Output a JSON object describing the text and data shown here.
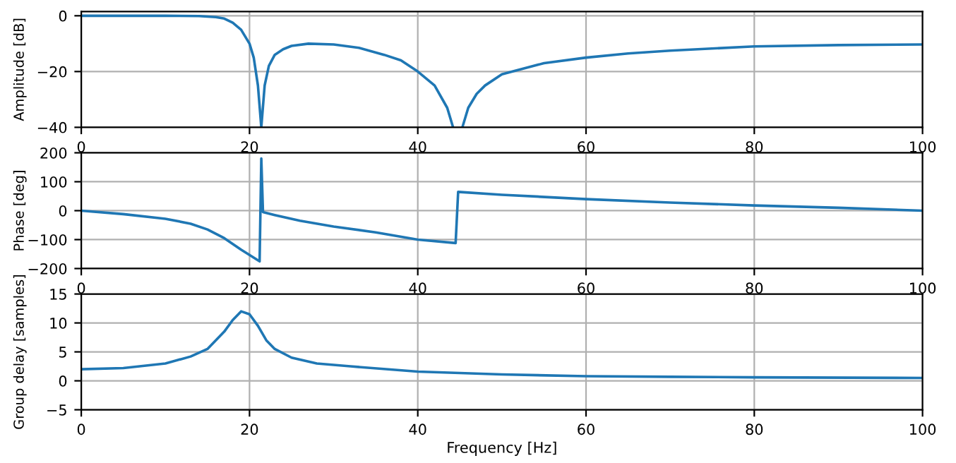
{
  "chart_data": [
    {
      "type": "line",
      "ylabel": "Amplitude [dB]",
      "xlim": [
        0,
        100
      ],
      "xticks": [
        0,
        20,
        40,
        60,
        80,
        100
      ],
      "ylim": [
        -40,
        1.5
      ],
      "yticks": [
        {
          "value": 0,
          "label": "0"
        },
        {
          "value": -20,
          "label": "−20"
        },
        {
          "value": -40,
          "label": "−40"
        }
      ],
      "grid": true,
      "x": [
        0,
        10,
        14,
        16,
        17,
        18,
        19,
        20,
        20.5,
        21,
        21.4,
        21.8,
        22.3,
        23,
        24,
        25,
        27,
        30,
        33,
        36,
        38,
        40,
        42,
        43.5,
        44.2,
        44.8,
        45.3,
        46,
        47,
        48,
        50,
        55,
        60,
        65,
        70,
        80,
        90,
        100
      ],
      "series": [
        {
          "color": "#1f77b4",
          "values": [
            0,
            0,
            -0.1,
            -0.5,
            -1,
            -2.5,
            -5,
            -10,
            -15,
            -25,
            -40,
            -25,
            -18,
            -14,
            -12,
            -10.8,
            -10,
            -10.3,
            -11.5,
            -14,
            -16,
            -20,
            -25,
            -33,
            -40,
            null,
            -40,
            -33,
            -28,
            -25,
            -21,
            -17,
            -15,
            -13.5,
            -12.5,
            -11,
            -10.5,
            -10.3
          ]
        }
      ]
    },
    {
      "type": "line",
      "ylabel": "Phase [deg]",
      "xlim": [
        0,
        100
      ],
      "xticks": [
        0,
        20,
        40,
        60,
        80,
        100
      ],
      "ylim": [
        -200,
        200
      ],
      "yticks": [
        {
          "value": -200,
          "label": "−200"
        },
        {
          "value": -100,
          "label": "−100"
        },
        0,
        100,
        200
      ],
      "grid": true,
      "x": [
        0,
        5,
        10,
        13,
        15,
        17,
        19,
        21.2,
        21.4,
        21.6,
        23,
        26,
        30,
        35,
        40,
        44.5,
        44.8,
        50,
        60,
        70,
        80,
        90,
        100
      ],
      "series": [
        {
          "color": "#1f77b4",
          "values": [
            0,
            -12,
            -28,
            -45,
            -65,
            -95,
            -135,
            -175,
            180,
            -5,
            -15,
            -35,
            -55,
            -75,
            -100,
            -112,
            65,
            55,
            40,
            28,
            18,
            10,
            0
          ]
        }
      ]
    },
    {
      "type": "line",
      "ylabel": "Group delay [samples]",
      "xlabel": "Frequency [Hz]",
      "xlim": [
        0,
        100
      ],
      "xticks": [
        0,
        20,
        40,
        60,
        80,
        100
      ],
      "ylim": [
        -5,
        15
      ],
      "yticks": [
        {
          "value": -5,
          "label": "−5"
        },
        0,
        5,
        10,
        15
      ],
      "grid": true,
      "x": [
        0,
        5,
        10,
        13,
        15,
        17,
        18,
        19,
        20,
        21,
        22,
        23,
        25,
        28,
        32,
        40,
        50,
        60,
        70,
        80,
        100
      ],
      "series": [
        {
          "color": "#1f77b4",
          "values": [
            2,
            2.2,
            3,
            4.2,
            5.5,
            8.5,
            10.5,
            12,
            11.5,
            9.5,
            7,
            5.5,
            4,
            3,
            2.5,
            1.6,
            1.1,
            0.8,
            0.7,
            0.6,
            0.5
          ]
        }
      ]
    }
  ]
}
